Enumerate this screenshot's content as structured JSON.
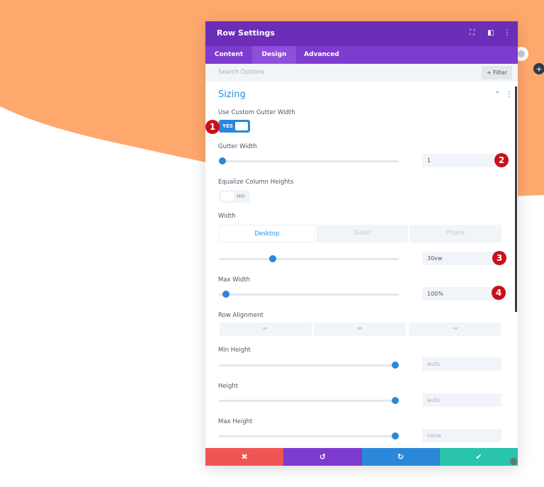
{
  "colors": {
    "background_shape": "#ffa86e",
    "header": "#6c2eb9",
    "tabs": "#7e3bd0",
    "accent": "#2b87da",
    "cancel": "#ef5555",
    "undo": "#7d3bcf",
    "redo": "#2b87da",
    "save": "#29c4a9",
    "badge": "#c8101a"
  },
  "header": {
    "title": "Row Settings",
    "icons": [
      "fullscreen-icon",
      "split-view-icon",
      "more-vertical-icon"
    ]
  },
  "tabs": [
    {
      "label": "Content"
    },
    {
      "label": "Design",
      "active": true
    },
    {
      "label": "Advanced"
    }
  ],
  "search": {
    "placeholder": "Search Options",
    "filter_label": "+ Filter"
  },
  "section": {
    "title": "Sizing"
  },
  "fields": {
    "custom_gutter": {
      "label": "Use Custom Gutter Width",
      "value": "YES",
      "badge": "1"
    },
    "gutter_width": {
      "label": "Gutter Width",
      "value": "1",
      "slider_percent": 0,
      "badge": "2"
    },
    "equalize": {
      "label": "Equalize Column Heights",
      "value": "NO"
    },
    "width": {
      "label": "Width",
      "devices": [
        "Desktop",
        "Tablet",
        "Phone"
      ],
      "active_device": "Desktop",
      "value": "30vw",
      "slider_percent": 30,
      "badge": "3"
    },
    "max_width": {
      "label": "Max Width",
      "value": "100%",
      "slider_percent": 4,
      "badge": "4"
    },
    "row_alignment": {
      "label": "Row Alignment",
      "options": [
        "⇤",
        "⇹",
        "⇥"
      ]
    },
    "min_height": {
      "label": "Min Height",
      "value": "auto",
      "slider_percent": 100
    },
    "height": {
      "label": "Height",
      "value": "auto",
      "slider_percent": 100
    },
    "max_height": {
      "label": "Max Height",
      "value": "none",
      "slider_percent": 100
    }
  },
  "footer": {
    "cancel": "✖",
    "undo": "↺",
    "redo": "↻",
    "save": "✔"
  }
}
